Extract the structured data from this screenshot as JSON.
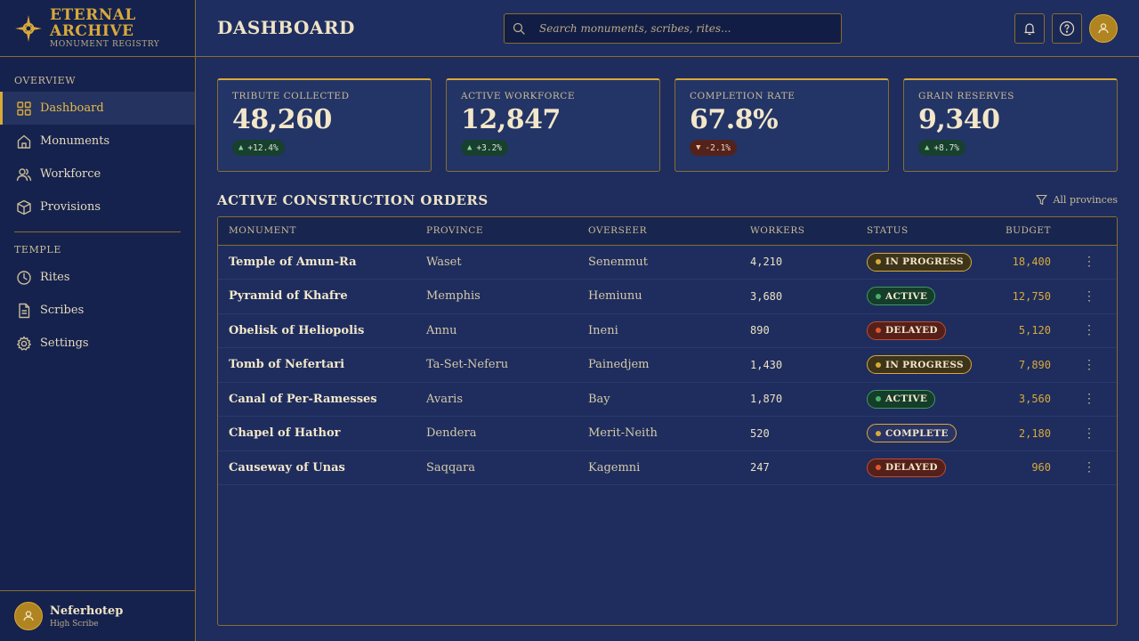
{
  "brand": {
    "title": "ETERNAL ARCHIVE",
    "subtitle": "MONUMENT REGISTRY"
  },
  "sidebar": {
    "sections": [
      {
        "label": "OVERVIEW"
      },
      {
        "label": "TEMPLE"
      }
    ],
    "items": [
      {
        "label": "Dashboard",
        "icon": "grid-icon",
        "active": true
      },
      {
        "label": "Monuments",
        "icon": "home-icon"
      },
      {
        "label": "Workforce",
        "icon": "users-icon"
      },
      {
        "label": "Provisions",
        "icon": "box-icon"
      },
      {
        "label": "Rites",
        "icon": "clock-icon"
      },
      {
        "label": "Scribes",
        "icon": "document-icon"
      },
      {
        "label": "Settings",
        "icon": "gear-icon"
      }
    ]
  },
  "user": {
    "name": "Neferhotep",
    "role": "High Scribe"
  },
  "header": {
    "title": "DASHBOARD",
    "search_placeholder": "Search monuments, scribes, rites..."
  },
  "stats": [
    {
      "label": "TRIBUTE COLLECTED",
      "value": "48,260",
      "delta": "+12.4%",
      "trend": "up"
    },
    {
      "label": "ACTIVE WORKFORCE",
      "value": "12,847",
      "delta": "+3.2%",
      "trend": "up"
    },
    {
      "label": "COMPLETION RATE",
      "value": "67.8%",
      "delta": "-2.1%",
      "trend": "down"
    },
    {
      "label": "GRAIN RESERVES",
      "value": "9,340",
      "delta": "+8.7%",
      "trend": "up"
    }
  ],
  "orders": {
    "title": "ACTIVE CONSTRUCTION ORDERS",
    "filter_label": "All provinces",
    "columns": [
      "MONUMENT",
      "PROVINCE",
      "OVERSEER",
      "WORKERS",
      "STATUS",
      "BUDGET"
    ],
    "rows": [
      {
        "monument": "Temple of Amun-Ra",
        "province": "Waset",
        "overseer": "Senenmut",
        "workers": "4,210",
        "status": "IN PROGRESS",
        "budget": "18,400"
      },
      {
        "monument": "Pyramid of Khafre",
        "province": "Memphis",
        "overseer": "Hemiunu",
        "workers": "3,680",
        "status": "ACTIVE",
        "budget": "12,750"
      },
      {
        "monument": "Obelisk of Heliopolis",
        "province": "Annu",
        "overseer": "Ineni",
        "workers": "890",
        "status": "DELAYED",
        "budget": "5,120"
      },
      {
        "monument": "Tomb of Nefertari",
        "province": "Ta-Set-Neferu",
        "overseer": "Painedjem",
        "workers": "1,430",
        "status": "IN PROGRESS",
        "budget": "7,890"
      },
      {
        "monument": "Canal of Per-Ramesses",
        "province": "Avaris",
        "overseer": "Bay",
        "workers": "1,870",
        "status": "ACTIVE",
        "budget": "3,560"
      },
      {
        "monument": "Chapel of Hathor",
        "province": "Dendera",
        "overseer": "Merit-Neith",
        "workers": "520",
        "status": "COMPLETE",
        "budget": "2,180"
      },
      {
        "monument": "Causeway of Unas",
        "province": "Saqqara",
        "overseer": "Kagemni",
        "workers": "247",
        "status": "DELAYED",
        "budget": "960"
      }
    ]
  },
  "colors": {
    "background": "#1e2d5e",
    "sidebar": "#15224d",
    "accent_gold": "#d9a93a",
    "border": "#8a6d2e",
    "status_active": "#46b06a",
    "status_delayed": "#e0582e"
  }
}
